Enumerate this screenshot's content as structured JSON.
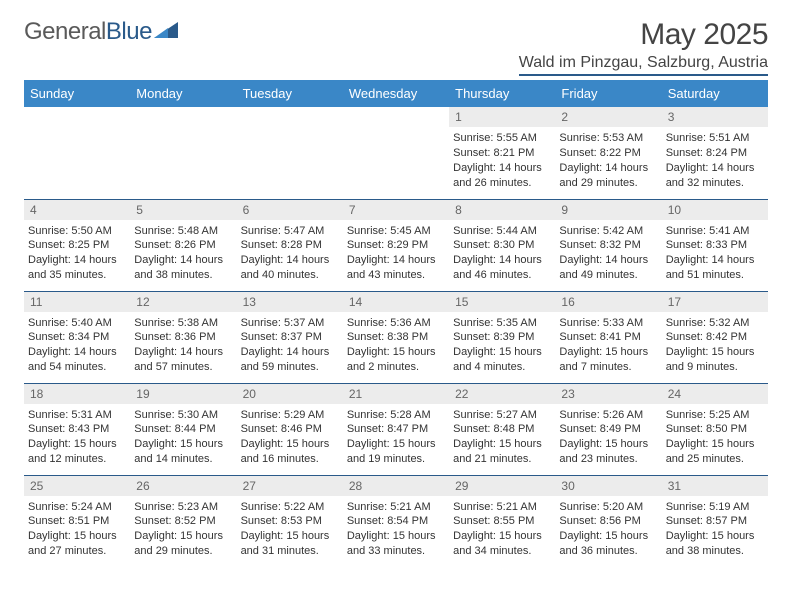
{
  "logo": {
    "word1": "General",
    "word2": "Blue"
  },
  "title": "May 2025",
  "location": "Wald im Pinzgau, Salzburg, Austria",
  "headers": [
    "Sunday",
    "Monday",
    "Tuesday",
    "Wednesday",
    "Thursday",
    "Friday",
    "Saturday"
  ],
  "colors": {
    "header_bg": "#3a87c7",
    "header_fg": "#ffffff",
    "border": "#2a5a8a",
    "daynum_bg": "#ececec",
    "daynum_fg": "#666666",
    "text": "#333333",
    "title_fg": "#444444"
  },
  "weeks": [
    [
      null,
      null,
      null,
      null,
      {
        "n": "1",
        "sr": "5:55 AM",
        "ss": "8:21 PM",
        "dl": "14 hours and 26 minutes."
      },
      {
        "n": "2",
        "sr": "5:53 AM",
        "ss": "8:22 PM",
        "dl": "14 hours and 29 minutes."
      },
      {
        "n": "3",
        "sr": "5:51 AM",
        "ss": "8:24 PM",
        "dl": "14 hours and 32 minutes."
      }
    ],
    [
      {
        "n": "4",
        "sr": "5:50 AM",
        "ss": "8:25 PM",
        "dl": "14 hours and 35 minutes."
      },
      {
        "n": "5",
        "sr": "5:48 AM",
        "ss": "8:26 PM",
        "dl": "14 hours and 38 minutes."
      },
      {
        "n": "6",
        "sr": "5:47 AM",
        "ss": "8:28 PM",
        "dl": "14 hours and 40 minutes."
      },
      {
        "n": "7",
        "sr": "5:45 AM",
        "ss": "8:29 PM",
        "dl": "14 hours and 43 minutes."
      },
      {
        "n": "8",
        "sr": "5:44 AM",
        "ss": "8:30 PM",
        "dl": "14 hours and 46 minutes."
      },
      {
        "n": "9",
        "sr": "5:42 AM",
        "ss": "8:32 PM",
        "dl": "14 hours and 49 minutes."
      },
      {
        "n": "10",
        "sr": "5:41 AM",
        "ss": "8:33 PM",
        "dl": "14 hours and 51 minutes."
      }
    ],
    [
      {
        "n": "11",
        "sr": "5:40 AM",
        "ss": "8:34 PM",
        "dl": "14 hours and 54 minutes."
      },
      {
        "n": "12",
        "sr": "5:38 AM",
        "ss": "8:36 PM",
        "dl": "14 hours and 57 minutes."
      },
      {
        "n": "13",
        "sr": "5:37 AM",
        "ss": "8:37 PM",
        "dl": "14 hours and 59 minutes."
      },
      {
        "n": "14",
        "sr": "5:36 AM",
        "ss": "8:38 PM",
        "dl": "15 hours and 2 minutes."
      },
      {
        "n": "15",
        "sr": "5:35 AM",
        "ss": "8:39 PM",
        "dl": "15 hours and 4 minutes."
      },
      {
        "n": "16",
        "sr": "5:33 AM",
        "ss": "8:41 PM",
        "dl": "15 hours and 7 minutes."
      },
      {
        "n": "17",
        "sr": "5:32 AM",
        "ss": "8:42 PM",
        "dl": "15 hours and 9 minutes."
      }
    ],
    [
      {
        "n": "18",
        "sr": "5:31 AM",
        "ss": "8:43 PM",
        "dl": "15 hours and 12 minutes."
      },
      {
        "n": "19",
        "sr": "5:30 AM",
        "ss": "8:44 PM",
        "dl": "15 hours and 14 minutes."
      },
      {
        "n": "20",
        "sr": "5:29 AM",
        "ss": "8:46 PM",
        "dl": "15 hours and 16 minutes."
      },
      {
        "n": "21",
        "sr": "5:28 AM",
        "ss": "8:47 PM",
        "dl": "15 hours and 19 minutes."
      },
      {
        "n": "22",
        "sr": "5:27 AM",
        "ss": "8:48 PM",
        "dl": "15 hours and 21 minutes."
      },
      {
        "n": "23",
        "sr": "5:26 AM",
        "ss": "8:49 PM",
        "dl": "15 hours and 23 minutes."
      },
      {
        "n": "24",
        "sr": "5:25 AM",
        "ss": "8:50 PM",
        "dl": "15 hours and 25 minutes."
      }
    ],
    [
      {
        "n": "25",
        "sr": "5:24 AM",
        "ss": "8:51 PM",
        "dl": "15 hours and 27 minutes."
      },
      {
        "n": "26",
        "sr": "5:23 AM",
        "ss": "8:52 PM",
        "dl": "15 hours and 29 minutes."
      },
      {
        "n": "27",
        "sr": "5:22 AM",
        "ss": "8:53 PM",
        "dl": "15 hours and 31 minutes."
      },
      {
        "n": "28",
        "sr": "5:21 AM",
        "ss": "8:54 PM",
        "dl": "15 hours and 33 minutes."
      },
      {
        "n": "29",
        "sr": "5:21 AM",
        "ss": "8:55 PM",
        "dl": "15 hours and 34 minutes."
      },
      {
        "n": "30",
        "sr": "5:20 AM",
        "ss": "8:56 PM",
        "dl": "15 hours and 36 minutes."
      },
      {
        "n": "31",
        "sr": "5:19 AM",
        "ss": "8:57 PM",
        "dl": "15 hours and 38 minutes."
      }
    ]
  ],
  "labels": {
    "sunrise": "Sunrise:",
    "sunset": "Sunset:",
    "daylight": "Daylight:"
  }
}
